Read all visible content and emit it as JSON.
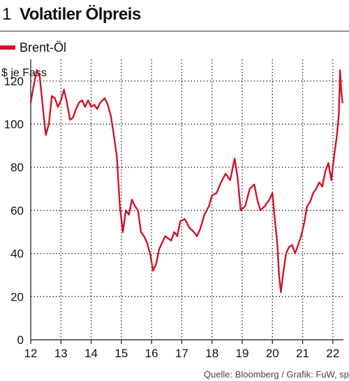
{
  "header": {
    "number": "1",
    "title": "Volatiler Ölpreis"
  },
  "legend": {
    "label": "Brent-Öl",
    "color": "#d0142b"
  },
  "source": "Quelle: Bloomberg / Grafik: FuW, sp",
  "chart_data": {
    "type": "line",
    "title": "Volatiler Ölpreis",
    "xlabel": "",
    "ylabel": "$ je Fass",
    "ylim": [
      0,
      130
    ],
    "xlim": [
      2012.0,
      2022.35
    ],
    "yticks": [
      0,
      20,
      40,
      60,
      80,
      100,
      120
    ],
    "xtick_values": [
      2012,
      2013,
      2014,
      2015,
      2016,
      2017,
      2018,
      2019,
      2020,
      2021,
      2022
    ],
    "xtick_labels": [
      "12",
      "13",
      "14",
      "15",
      "16",
      "17",
      "18",
      "19",
      "20",
      "21",
      "22"
    ],
    "grid": "dotted",
    "legend_position": "top-left",
    "series": [
      {
        "name": "Brent-Öl",
        "color": "#d0142b",
        "x": [
          2012.0,
          2012.1,
          2012.2,
          2012.3,
          2012.4,
          2012.5,
          2012.6,
          2012.7,
          2012.8,
          2012.9,
          2013.0,
          2013.1,
          2013.2,
          2013.3,
          2013.4,
          2013.5,
          2013.6,
          2013.7,
          2013.8,
          2013.9,
          2014.0,
          2014.1,
          2014.2,
          2014.3,
          2014.45,
          2014.55,
          2014.65,
          2014.75,
          2014.85,
          2014.95,
          2015.05,
          2015.15,
          2015.25,
          2015.35,
          2015.45,
          2015.55,
          2015.65,
          2015.75,
          2015.85,
          2015.95,
          2016.05,
          2016.15,
          2016.25,
          2016.35,
          2016.45,
          2016.55,
          2016.65,
          2016.75,
          2016.85,
          2016.95,
          2017.1,
          2017.25,
          2017.4,
          2017.5,
          2017.6,
          2017.75,
          2017.9,
          2018.0,
          2018.15,
          2018.3,
          2018.45,
          2018.6,
          2018.75,
          2018.85,
          2018.95,
          2019.1,
          2019.25,
          2019.4,
          2019.5,
          2019.6,
          2019.75,
          2019.9,
          2020.0,
          2020.08,
          2020.16,
          2020.22,
          2020.28,
          2020.35,
          2020.45,
          2020.55,
          2020.65,
          2020.75,
          2020.85,
          2020.95,
          2021.05,
          2021.15,
          2021.25,
          2021.35,
          2021.45,
          2021.55,
          2021.65,
          2021.75,
          2021.85,
          2021.95,
          2022.05,
          2022.12,
          2022.17,
          2022.2,
          2022.24,
          2022.28,
          2022.32
        ],
        "y": [
          110,
          118,
          125,
          122,
          108,
          95,
          100,
          113,
          112,
          108,
          111,
          116,
          110,
          102,
          103,
          107,
          110,
          111,
          108,
          111,
          108,
          109,
          107,
          110,
          112,
          109,
          104,
          95,
          85,
          62,
          50,
          60,
          58,
          65,
          62,
          60,
          50,
          48,
          45,
          40,
          32,
          35,
          42,
          45,
          48,
          47,
          46,
          50,
          48,
          55,
          56,
          52,
          50,
          48,
          51,
          58,
          62,
          67,
          68,
          73,
          77,
          74,
          84,
          75,
          60,
          62,
          70,
          72,
          65,
          60,
          62,
          65,
          68,
          56,
          45,
          30,
          22,
          30,
          40,
          43,
          44,
          40,
          44,
          48,
          54,
          62,
          64,
          68,
          70,
          73,
          71,
          78,
          82,
          74,
          86,
          93,
          100,
          105,
          125,
          115,
          110
        ]
      }
    ]
  }
}
